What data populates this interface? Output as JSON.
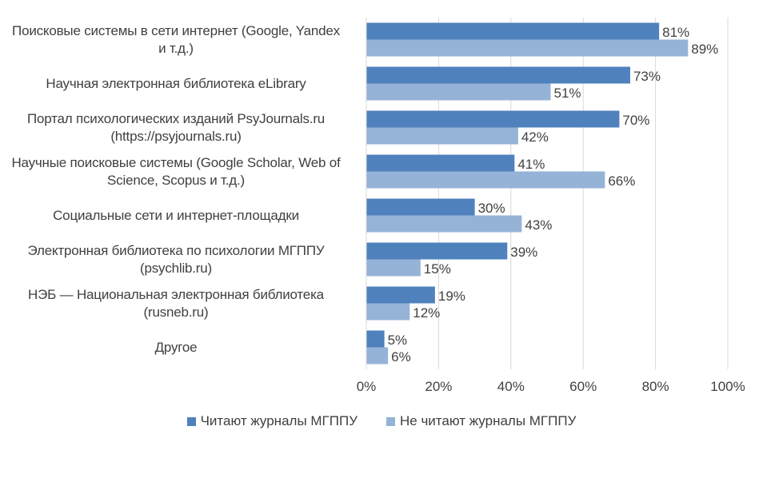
{
  "chart_data": {
    "type": "bar",
    "orientation": "horizontal",
    "categories": [
      "Поисковые системы в сети интернет (Google, Yandex\nи т.д.)",
      "Научная электронная библиотека eLibrary",
      "Портал психологических изданий PsyJournals.ru\n(https://psyjournals.ru)",
      "Научные поисковые системы (Google Scholar, Web of\nScience, Scopus и т.д.)",
      "Социальные сети и интернет-площадки",
      "Электронная библиотека по психологии МГППУ\n(psychlib.ru)",
      "НЭБ — Национальная электронная библиотека\n(rusneb.ru)",
      "Другое"
    ],
    "series": [
      {
        "name": "Читают журналы МГППУ",
        "color": "#4f81bd",
        "values": [
          81,
          73,
          70,
          41,
          30,
          39,
          19,
          5
        ]
      },
      {
        "name": "Не читают журналы МГППУ",
        "color": "#95b3d7",
        "values": [
          89,
          51,
          42,
          66,
          43,
          15,
          12,
          6
        ]
      }
    ],
    "value_labels": [
      [
        "81%",
        "73%",
        "70%",
        "41%",
        "30%",
        "39%",
        "19%",
        "5%"
      ],
      [
        "89%",
        "51%",
        "42%",
        "66%",
        "43%",
        "15%",
        "12%",
        "6%"
      ]
    ],
    "xlim": [
      0,
      100
    ],
    "xticks": [
      "0%",
      "20%",
      "40%",
      "60%",
      "80%",
      "100%"
    ],
    "grid": "vertical",
    "legend": "bottom"
  }
}
